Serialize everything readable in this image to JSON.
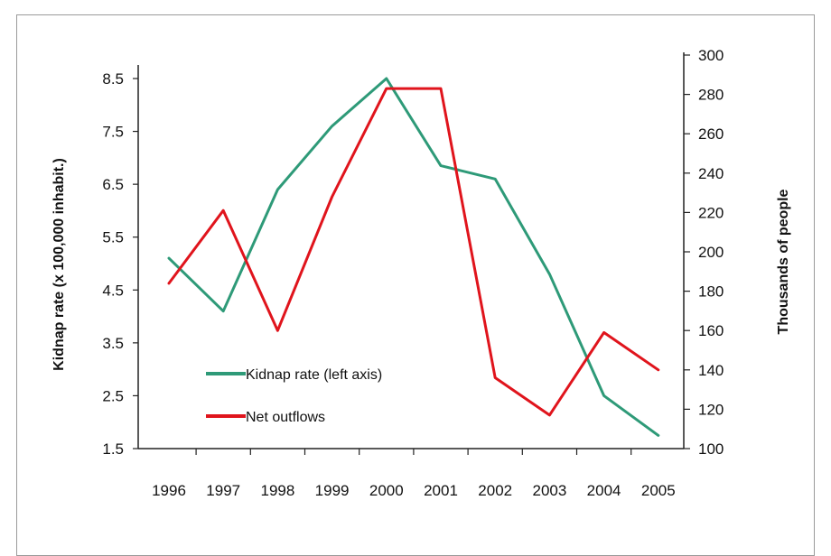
{
  "chart_data": {
    "type": "line",
    "x": [
      "1996",
      "1997",
      "1998",
      "1999",
      "2000",
      "2001",
      "2002",
      "2003",
      "2004",
      "2005"
    ],
    "y_left": {
      "label": "Kidnap rate (x 100,000 inhabit.)",
      "ylim": [
        1.5,
        8.5
      ],
      "ticks": [
        "1.5",
        "2.5",
        "3.5",
        "4.5",
        "5.5",
        "6.5",
        "7.5",
        "8.5"
      ]
    },
    "y_right": {
      "label": "Thousands of people",
      "ylim": [
        100,
        300
      ],
      "ticks": [
        "100",
        "120",
        "140",
        "160",
        "180",
        "200",
        "220",
        "240",
        "260",
        "280",
        "300"
      ]
    },
    "series": [
      {
        "name": "Kidnap rate (left axis)",
        "axis": "left",
        "color": "#2e9a78",
        "points": [
          {
            "x": "1996",
            "y": 5.1
          },
          {
            "x": "1997",
            "y": 4.1
          },
          {
            "x": "1998",
            "y": 6.4
          },
          {
            "x": "1999",
            "y": 7.6
          },
          {
            "x": "2000",
            "y": 8.5
          },
          {
            "x": "2001",
            "y": 6.85
          },
          {
            "x": "2002",
            "y": 6.6
          },
          {
            "x": "2003",
            "y": 4.8
          },
          {
            "x": "2004",
            "y": 2.5
          },
          {
            "x": "2005",
            "y": 1.75
          }
        ]
      },
      {
        "name": "Net outflows",
        "axis": "right",
        "color": "#e0141c",
        "points": [
          {
            "x": "1996",
            "y": 184
          },
          {
            "x": "1997",
            "y": 221
          },
          {
            "x": "1998",
            "y": 160
          },
          {
            "x": "1999",
            "y": 228
          },
          {
            "x": "2000",
            "y": 283
          },
          {
            "x": "2000.5",
            "y": 283
          },
          {
            "x": "2001",
            "y": 283
          },
          {
            "x": "2002",
            "y": 136
          },
          {
            "x": "2003",
            "y": 117
          },
          {
            "x": "2004",
            "y": 159
          },
          {
            "x": "2005",
            "y": 140
          }
        ]
      }
    ],
    "legend": [
      {
        "label": "Kidnap rate (left axis)",
        "color": "#2e9a78"
      },
      {
        "label": "Net outflows",
        "color": "#e0141c"
      }
    ],
    "legend_position": "lower-left",
    "grid": false
  }
}
